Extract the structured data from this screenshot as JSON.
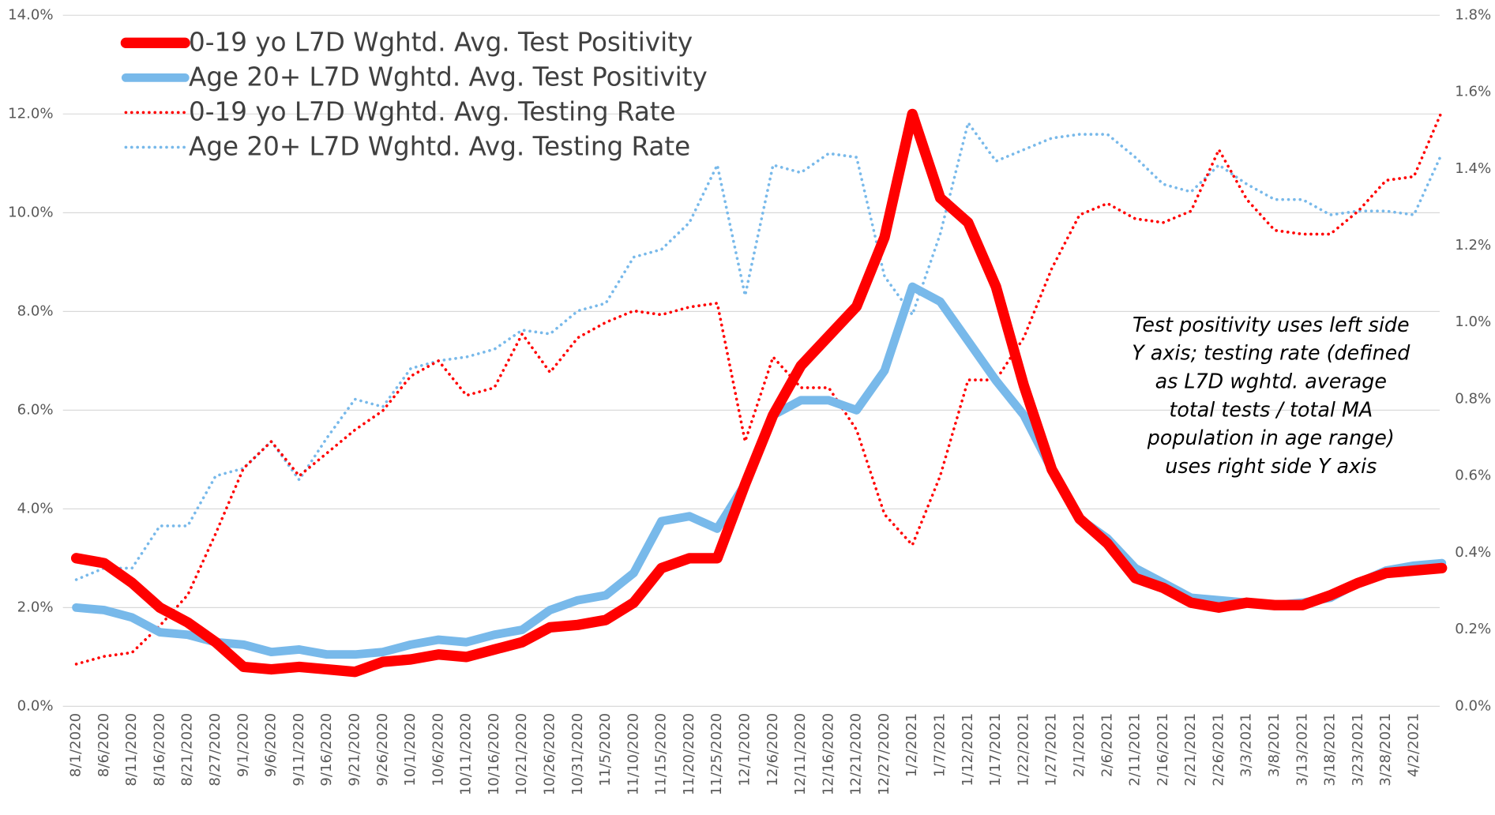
{
  "chart_data": {
    "type": "line",
    "categories": [
      "8/1/2020",
      "8/6/2020",
      "8/11/2020",
      "8/16/2020",
      "8/21/2020",
      "8/27/2020",
      "9/1/2020",
      "9/6/2020",
      "9/11/2020",
      "9/16/2020",
      "9/21/2020",
      "9/26/2020",
      "10/1/2020",
      "10/6/2020",
      "10/11/2020",
      "10/16/2020",
      "10/21/2020",
      "10/26/2020",
      "10/31/2020",
      "11/5/2020",
      "11/10/2020",
      "11/15/2020",
      "11/20/2020",
      "11/25/2020",
      "12/1/2020",
      "12/6/2020",
      "12/11/2020",
      "12/16/2020",
      "12/21/2020",
      "12/27/2020",
      "1/2/2021",
      "1/7/2021",
      "1/12/2021",
      "1/17/2021",
      "1/22/2021",
      "1/27/2021",
      "2/1/2021",
      "2/6/2021",
      "2/11/2021",
      "2/16/2021",
      "2/21/2021",
      "2/26/2021",
      "3/3/2021",
      "3/8/2021",
      "3/13/2021",
      "3/18/2021",
      "3/23/2021",
      "3/28/2021",
      "4/2/2021",
      null
    ],
    "series": [
      {
        "name": "0-19 yo L7D Wghtd. Avg. Test Positivity",
        "color": "#ff0000",
        "style": "solid",
        "axis": "y",
        "values": [
          3.0,
          2.9,
          2.5,
          2.0,
          1.7,
          1.3,
          0.8,
          0.75,
          0.8,
          0.75,
          0.7,
          0.9,
          0.95,
          1.05,
          1.0,
          1.15,
          1.3,
          1.6,
          1.65,
          1.75,
          2.1,
          2.8,
          3.0,
          3.0,
          4.5,
          5.9,
          6.9,
          7.5,
          8.1,
          9.5,
          12.0,
          10.3,
          9.8,
          8.5,
          6.5,
          4.8,
          3.8,
          3.3,
          2.6,
          2.4,
          2.1,
          2.0,
          2.1,
          2.05,
          2.05,
          2.25,
          2.5,
          2.7,
          2.75,
          2.8
        ]
      },
      {
        "name": "Age 20+ L7D Wghtd. Avg. Test Positivity",
        "color": "#78b9ea",
        "style": "solid",
        "axis": "y",
        "values": [
          2.0,
          1.95,
          1.8,
          1.5,
          1.45,
          1.3,
          1.25,
          1.1,
          1.15,
          1.05,
          1.05,
          1.1,
          1.25,
          1.35,
          1.3,
          1.45,
          1.55,
          1.95,
          2.15,
          2.25,
          2.7,
          3.75,
          3.85,
          3.6,
          4.5,
          5.9,
          6.2,
          6.2,
          6.0,
          6.8,
          8.5,
          8.2,
          7.4,
          6.6,
          5.9,
          4.8,
          3.8,
          3.4,
          2.8,
          2.5,
          2.2,
          2.15,
          2.1,
          2.05,
          2.1,
          2.2,
          2.5,
          2.75,
          2.85,
          2.9
        ]
      },
      {
        "name": "0-19 yo L7D Wghtd. Avg. Testing Rate",
        "color": "#ff0000",
        "style": "dotted",
        "axis": "y2",
        "values": [
          0.11,
          0.13,
          0.14,
          0.21,
          0.29,
          0.45,
          0.62,
          0.69,
          0.6,
          0.66,
          0.72,
          0.77,
          0.86,
          0.9,
          0.81,
          0.83,
          0.97,
          0.87,
          0.96,
          1.0,
          1.03,
          1.02,
          1.04,
          1.05,
          0.69,
          0.91,
          0.83,
          0.83,
          0.72,
          0.5,
          0.42,
          0.6,
          0.85,
          0.85,
          0.96,
          1.14,
          1.28,
          1.31,
          1.27,
          1.26,
          1.29,
          1.45,
          1.32,
          1.24,
          1.23,
          1.23,
          1.29,
          1.37,
          1.38,
          1.55
        ]
      },
      {
        "name": "Age 20+ L7D Wghtd. Avg. Testing Rate",
        "color": "#78b9ea",
        "style": "dotted",
        "axis": "y2",
        "values": [
          0.33,
          0.36,
          0.36,
          0.47,
          0.47,
          0.6,
          0.62,
          0.69,
          0.59,
          0.7,
          0.8,
          0.78,
          0.88,
          0.9,
          0.91,
          0.93,
          0.98,
          0.97,
          1.03,
          1.05,
          1.17,
          1.19,
          1.26,
          1.41,
          1.07,
          1.41,
          1.39,
          1.44,
          1.43,
          1.12,
          1.02,
          1.23,
          1.52,
          1.42,
          1.45,
          1.48,
          1.49,
          1.49,
          1.43,
          1.36,
          1.34,
          1.41,
          1.36,
          1.32,
          1.32,
          1.28,
          1.29,
          1.29,
          1.28,
          1.44
        ]
      }
    ],
    "ylim": [
      0,
      14
    ],
    "yticks": [
      {
        "value": 0,
        "label": "0.0%"
      },
      {
        "value": 2,
        "label": "2.0%"
      },
      {
        "value": 4,
        "label": "4.0%"
      },
      {
        "value": 6,
        "label": "6.0%"
      },
      {
        "value": 8,
        "label": "8.0%"
      },
      {
        "value": 10,
        "label": "10.0%"
      },
      {
        "value": 12,
        "label": "12.0%"
      },
      {
        "value": 14,
        "label": "14.0%"
      }
    ],
    "y2lim": [
      0,
      1.8
    ],
    "y2ticks": [
      {
        "value": 0,
        "label": "0.0%"
      },
      {
        "value": 0.2,
        "label": "0.2%"
      },
      {
        "value": 0.4,
        "label": "0.4%"
      },
      {
        "value": 0.6,
        "label": "0.6%"
      },
      {
        "value": 0.8,
        "label": "0.8%"
      },
      {
        "value": 1.0,
        "label": "1.0%"
      },
      {
        "value": 1.2,
        "label": "1.2%"
      },
      {
        "value": 1.4,
        "label": "1.4%"
      },
      {
        "value": 1.6,
        "label": "1.6%"
      },
      {
        "value": 1.8,
        "label": "1.8%"
      }
    ],
    "grid": true,
    "legend": "top-left",
    "annotation": [
      "Test positivity uses left side",
      "Y axis; testing rate (defined",
      "as L7D wghtd. average",
      "total tests / total MA",
      "population in age range)",
      "uses right side Y axis"
    ]
  }
}
